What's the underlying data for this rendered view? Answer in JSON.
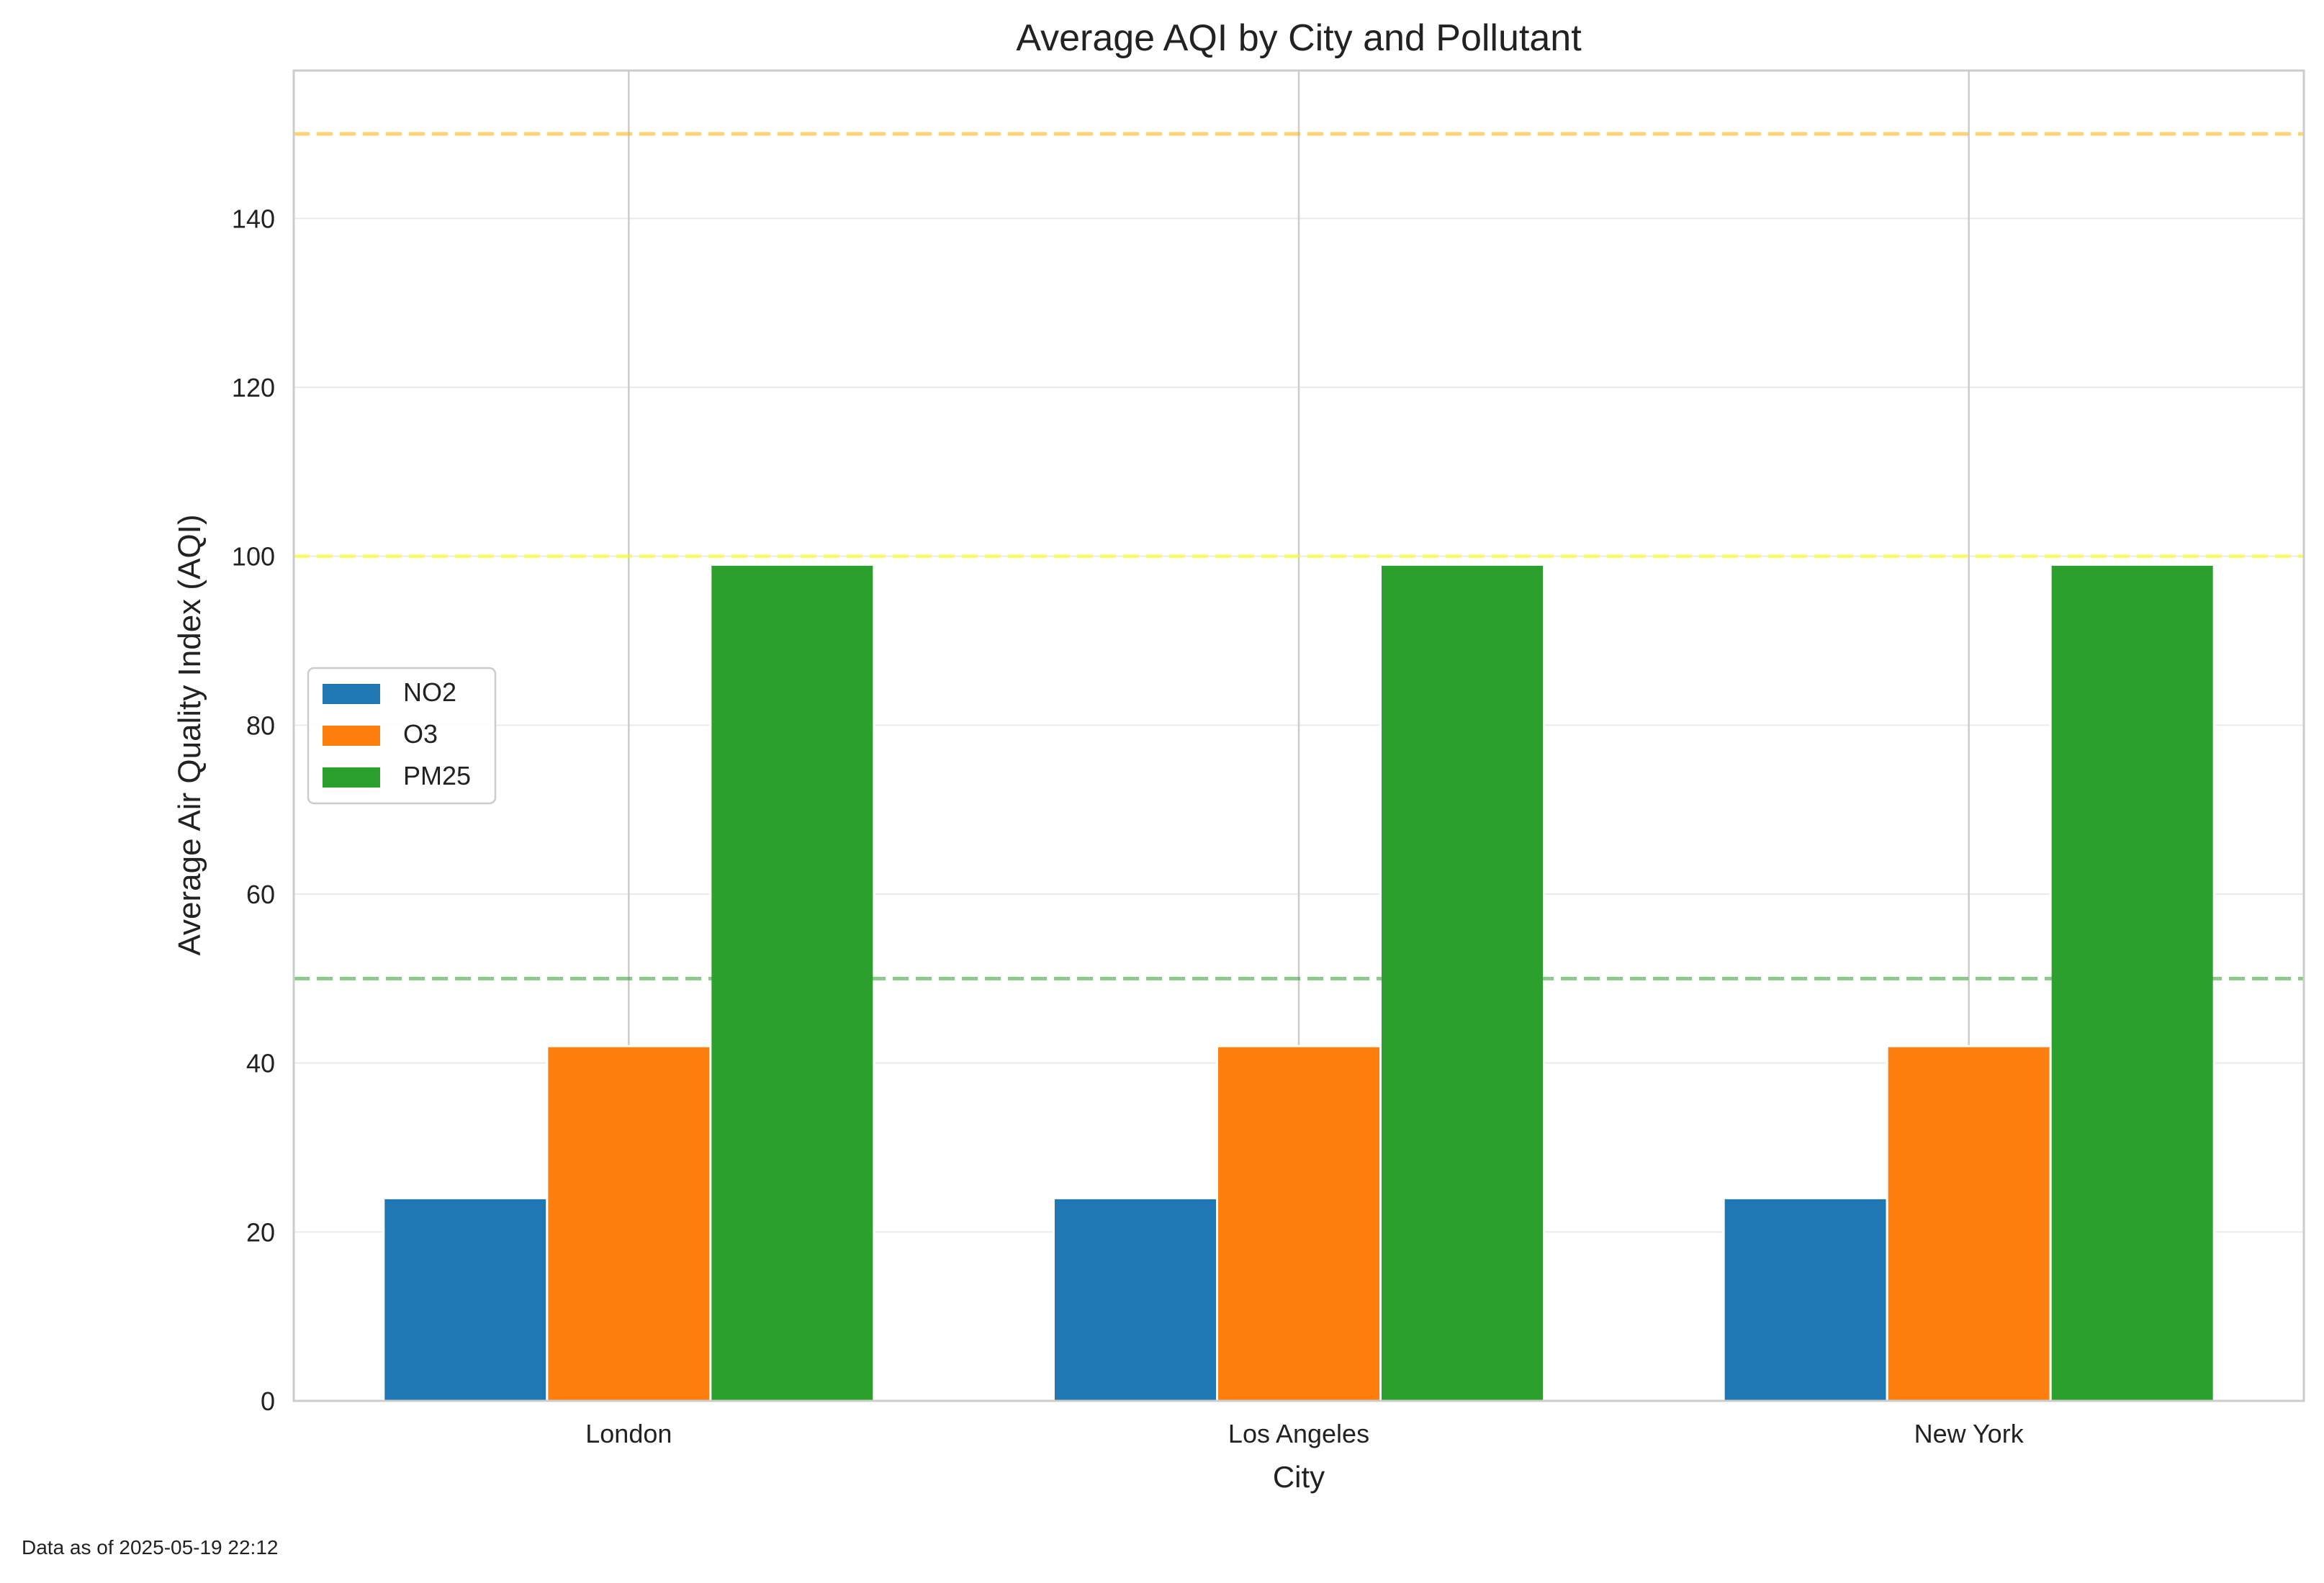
{
  "chart_data": {
    "type": "bar",
    "title": "Average AQI by City and Pollutant",
    "xlabel": "City",
    "ylabel": "Average Air Quality Index (AQI)",
    "categories": [
      "London",
      "Los Angeles",
      "New York"
    ],
    "series": [
      {
        "name": "NO2",
        "color": "#1f77b4",
        "values": [
          24,
          24,
          24
        ]
      },
      {
        "name": "O3",
        "color": "#ff7f0e",
        "values": [
          42,
          42,
          42
        ]
      },
      {
        "name": "PM25",
        "color": "#2ca02c",
        "values": [
          99,
          99,
          99
        ]
      }
    ],
    "ylim": [
      0,
      157.5
    ],
    "yticks": [
      0,
      20,
      40,
      60,
      80,
      100,
      120,
      140
    ],
    "reference_lines": [
      {
        "value": 50,
        "color": "#2ca02c"
      },
      {
        "value": 100,
        "color": "#ffff00"
      },
      {
        "value": 150,
        "color": "#ffb000"
      }
    ],
    "legend_position": "center-left",
    "grid": true
  },
  "footnote": "Data as of 2025-05-19 22:12"
}
